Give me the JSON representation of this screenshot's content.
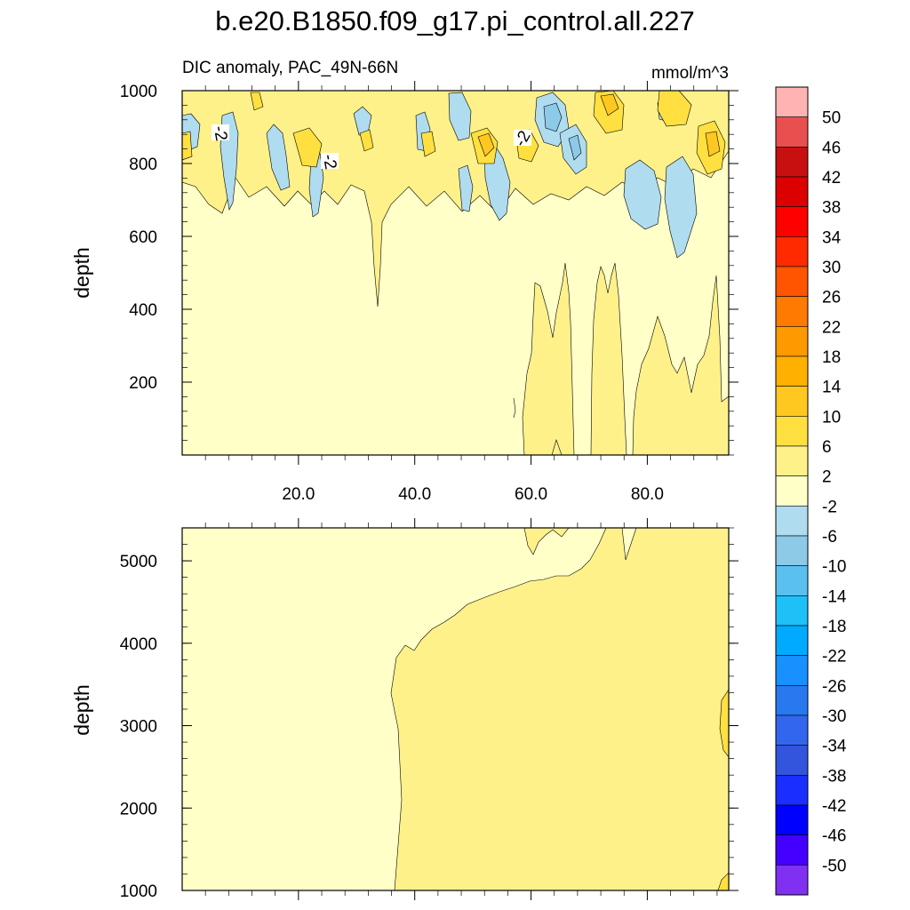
{
  "chart_data": {
    "type": "contour",
    "title": "b.e20.B1850.f09_g17.pi_control.all.227",
    "subtitle_left": "DIC anomaly, PAC_49N-66N",
    "subtitle_right": "mmol/m^3",
    "panels": [
      {
        "name": "upper",
        "xlabel": "",
        "ylabel": "depth",
        "xlim": [
          0,
          94
        ],
        "ylim": [
          1000,
          0
        ],
        "xticks": [
          20,
          40,
          60,
          80
        ],
        "xtick_labels": [
          "20.0",
          "40.0",
          "60.0",
          "80.0"
        ],
        "yticks": [
          200,
          400,
          600,
          800,
          1000
        ],
        "ytick_labels": [
          "200",
          "400",
          "600",
          "800",
          "1000"
        ],
        "contour_labels": [
          "-2",
          "-2",
          "-2"
        ]
      },
      {
        "name": "lower",
        "ylabel": "depth",
        "xlim": [
          0,
          94
        ],
        "ylim": [
          5400,
          1000
        ],
        "yticks": [
          1000,
          2000,
          3000,
          4000,
          5000
        ],
        "ytick_labels": [
          "1000",
          "2000",
          "3000",
          "4000",
          "5000"
        ]
      }
    ],
    "colorbar": {
      "levels": [
        "50",
        "46",
        "42",
        "38",
        "34",
        "30",
        "26",
        "22",
        "18",
        "14",
        "10",
        "6",
        "2",
        "-2",
        "-6",
        "-10",
        "-14",
        "-18",
        "-22",
        "-26",
        "-30",
        "-34",
        "-38",
        "-42",
        "-46",
        "-50"
      ],
      "colors": [
        "#ffb3b3",
        "#e85050",
        "#c81010",
        "#dd0000",
        "#ff0000",
        "#ff2a00",
        "#ff5500",
        "#ff7a00",
        "#ff9900",
        "#ffb000",
        "#ffc820",
        "#ffe040",
        "#fff18a",
        "#ffffc8",
        "#b0dcf0",
        "#8ccae8",
        "#5ac0f0",
        "#1ec0f8",
        "#00aaff",
        "#1890ff",
        "#2878f0",
        "#3366ee",
        "#3355dd",
        "#1a2eff",
        "#0000ff",
        "#4400ff",
        "#8030f0"
      ]
    }
  }
}
